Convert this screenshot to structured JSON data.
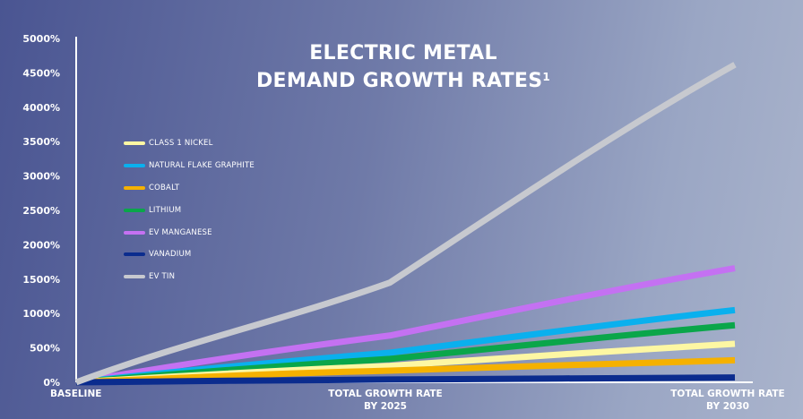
{
  "chart_data": {
    "type": "line",
    "title_line1": "ELECTRIC METAL",
    "title_line2": "DEMAND GROWTH RATES",
    "title_footnote": "1",
    "categories": [
      "BASELINE",
      "TOTAL GROWTH RATE BY 2025",
      "TOTAL GROWTH RATE BY 2030"
    ],
    "x_tick_labels": [
      [
        "BASELINE"
      ],
      [
        "TOTAL GROWTH RATE",
        "BY 2025"
      ],
      [
        "TOTAL GROWTH RATE",
        "BY 2030"
      ]
    ],
    "y_ticks": [
      "0%",
      "500%",
      "1000%",
      "1500%",
      "2000%",
      "2500%",
      "3000%",
      "3500%",
      "4000%",
      "4500%",
      "5000%"
    ],
    "ylim": [
      0,
      5000
    ],
    "legend_position": "top-left",
    "series": [
      {
        "name": "CLASS 1 NICKEL",
        "color": "#fdf7a3",
        "values": [
          0,
          240,
          560
        ]
      },
      {
        "name": "NATURAL FLAKE GRAPHITE",
        "color": "#0ab0ee",
        "values": [
          0,
          430,
          1050
        ]
      },
      {
        "name": "COBALT",
        "color": "#f5b100",
        "values": [
          0,
          170,
          320
        ]
      },
      {
        "name": "LITHIUM",
        "color": "#0aa64a",
        "values": [
          0,
          340,
          830
        ]
      },
      {
        "name": "EV MANGANESE",
        "color": "#c471f2",
        "values": [
          0,
          680,
          1660
        ]
      },
      {
        "name": "VANADIUM",
        "color": "#0b2c8e",
        "values": [
          0,
          40,
          70
        ]
      },
      {
        "name": "EV TIN",
        "color": "#c7c9cf",
        "values": [
          0,
          1450,
          4620
        ]
      }
    ]
  }
}
